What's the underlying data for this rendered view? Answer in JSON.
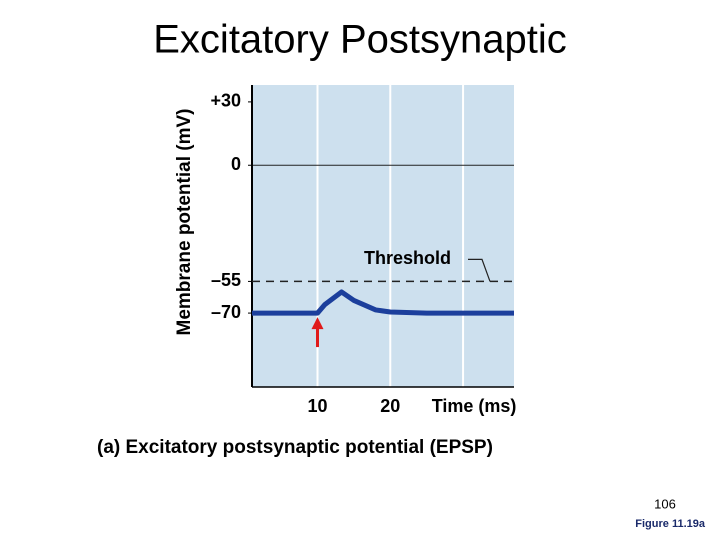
{
  "slide": {
    "title": "Excitatory Postsynaptic",
    "page_number": "106",
    "figure": "Figure 11.19a"
  },
  "chart_data": {
    "type": "line",
    "ylabel": "Membrane potential (mV)",
    "caption": "(a) Excitatory postsynaptic potential (EPSP)",
    "x": [
      1,
      10,
      11,
      13.3,
      15,
      18,
      20,
      25,
      37
    ],
    "series": [
      {
        "name": "EPSP",
        "color": "#1c3f9c",
        "values": [
          -70,
          -70,
          -66,
          -60,
          -64,
          -68.5,
          -69.5,
          -70,
          -70
        ]
      }
    ],
    "xlim": [
      1,
      37
    ],
    "ylim": [
      -105,
      38
    ],
    "xticks": [
      10,
      20,
      {
        "value": 30,
        "label": "Time (ms)"
      }
    ],
    "yticks": [
      {
        "value": 30,
        "label": "+30"
      },
      0,
      {
        "value": -55,
        "label": "–55"
      },
      {
        "value": -70,
        "label": "–70"
      }
    ],
    "threshold": {
      "value": -55,
      "label": "Threshold"
    },
    "grid": true,
    "background": "#cde0ee",
    "stimulus_color": "#e01a1a"
  }
}
